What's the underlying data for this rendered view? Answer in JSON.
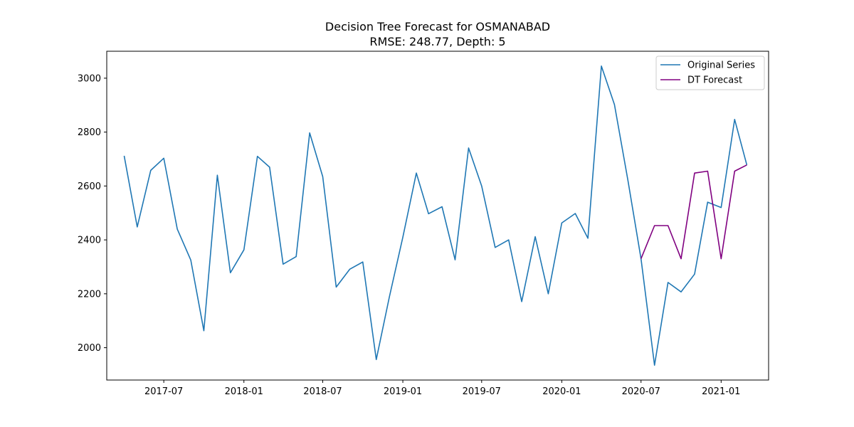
{
  "chart_data": {
    "type": "line",
    "title": "Decision Tree Forecast for OSMANABAD",
    "subtitle": "RMSE: 248.77, Depth: 5",
    "xlabel": "",
    "ylabel": "",
    "xlim": [
      "2017-02-20",
      "2021-04-20"
    ],
    "ylim": [
      1880,
      3100
    ],
    "grid": false,
    "legend_position": "upper right",
    "x_tick_labels": [
      "2017-07",
      "2018-01",
      "2018-07",
      "2019-01",
      "2019-07",
      "2020-01",
      "2020-07",
      "2021-01"
    ],
    "y_tick_labels": [
      2000,
      2200,
      2400,
      2600,
      2800,
      3000
    ],
    "series": [
      {
        "name": "Original Series",
        "color": "#1f77b4",
        "x": [
          "2017-04",
          "2017-05",
          "2017-06",
          "2017-07",
          "2017-08",
          "2017-09",
          "2017-10",
          "2017-11",
          "2017-12",
          "2018-01",
          "2018-02",
          "2018-03",
          "2018-04",
          "2018-05",
          "2018-06",
          "2018-07",
          "2018-08",
          "2018-09",
          "2018-10",
          "2018-11",
          "2018-12",
          "2019-01",
          "2019-02",
          "2019-03",
          "2019-04",
          "2019-05",
          "2019-06",
          "2019-07",
          "2019-08",
          "2019-09",
          "2019-10",
          "2019-11",
          "2019-12",
          "2020-01",
          "2020-02",
          "2020-03",
          "2020-04",
          "2020-05",
          "2020-06",
          "2020-07",
          "2020-08",
          "2020-09",
          "2020-10",
          "2020-11",
          "2020-12",
          "2021-01",
          "2021-02",
          "2021-03"
        ],
        "values": [
          2712,
          2448,
          2658,
          2703,
          2440,
          2325,
          2063,
          2640,
          2278,
          2363,
          2710,
          2670,
          2310,
          2338,
          2797,
          2635,
          2225,
          2291,
          2318,
          1956,
          2188,
          2410,
          2648,
          2497,
          2523,
          2326,
          2741,
          2600,
          2372,
          2400,
          2171,
          2412,
          2200,
          2463,
          2498,
          2406,
          3045,
          2902,
          2620,
          2330,
          1935,
          2242,
          2207,
          2273,
          2540,
          2520,
          2847,
          2678
        ]
      },
      {
        "name": "DT Forecast",
        "color": "#800080",
        "x": [
          "2020-07",
          "2020-08",
          "2020-09",
          "2020-10",
          "2020-11",
          "2020-12",
          "2021-01",
          "2021-02",
          "2021-03"
        ],
        "values": [
          2330,
          2453,
          2453,
          2330,
          2648,
          2655,
          2330,
          2655,
          2678
        ]
      }
    ]
  }
}
